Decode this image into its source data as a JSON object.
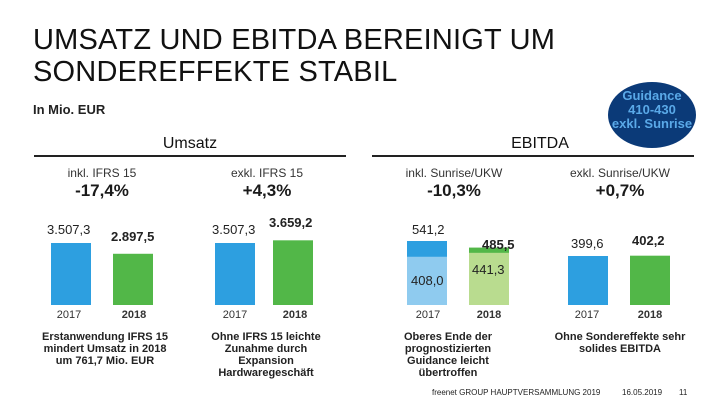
{
  "title_line1": "UMSATZ UND EBITDA BEREINIGT UM",
  "title_line2": "SONDEREFFEKTE STABIL",
  "unit_label": "In Mio. EUR",
  "guidance": {
    "line1": "Guidance",
    "line2": "410-430",
    "line3": "exkl. Sunrise"
  },
  "sections": {
    "umsatz": "Umsatz",
    "ebitda": "EBITDA"
  },
  "colors": {
    "bar_blue": "#2d9fe0",
    "bar_green": "#52b748",
    "bar_light_blue": "#8fcbef",
    "bar_light_green": "#b9dc8f"
  },
  "chart_data": [
    {
      "type": "bar",
      "title": "inkl. IFRS 15",
      "change": "-17,4%",
      "categories": [
        "2017",
        "2018"
      ],
      "values": [
        3507.3,
        2897.5
      ],
      "value_labels": [
        "3.507,3",
        "2.897,5"
      ],
      "note": [
        "Erstanwendung IFRS 15",
        "mindert Umsatz in 2018",
        "um 761,7 Mio. EUR"
      ]
    },
    {
      "type": "bar",
      "title": "exkl. IFRS 15",
      "change": "+4,3%",
      "categories": [
        "2017",
        "2018"
      ],
      "values": [
        3507.3,
        3659.2
      ],
      "value_labels": [
        "3.507,3",
        "3.659,2"
      ],
      "note": [
        "Ohne IFRS 15 leichte",
        "Zunahme durch",
        "Expansion",
        "Hardwaregeschäft"
      ]
    },
    {
      "type": "bar",
      "title": "inkl. Sunrise/UKW",
      "change": "-10,3%",
      "categories": [
        "2017",
        "2018"
      ],
      "values": [
        541.2,
        485.5
      ],
      "value_labels": [
        "541,2",
        "485,5"
      ],
      "inner_values": [
        408.0,
        441.3
      ],
      "inner_labels": [
        "408,0",
        "441,3"
      ],
      "note": [
        "Oberes Ende der",
        "prognostizierten",
        "Guidance leicht",
        "übertroffen"
      ]
    },
    {
      "type": "bar",
      "title": "exkl. Sunrise/UKW",
      "change": "+0,7%",
      "categories": [
        "2017",
        "2018"
      ],
      "values": [
        399.6,
        402.2
      ],
      "value_labels": [
        "399,6",
        "402,2"
      ],
      "note": [
        "Ohne Sondereffekte sehr",
        "solides EBITDA"
      ]
    }
  ],
  "footer": {
    "company": "freenet GROUP HAUPTVERSAMMLUNG 2019",
    "date": "16.05.2019",
    "page": "11"
  }
}
